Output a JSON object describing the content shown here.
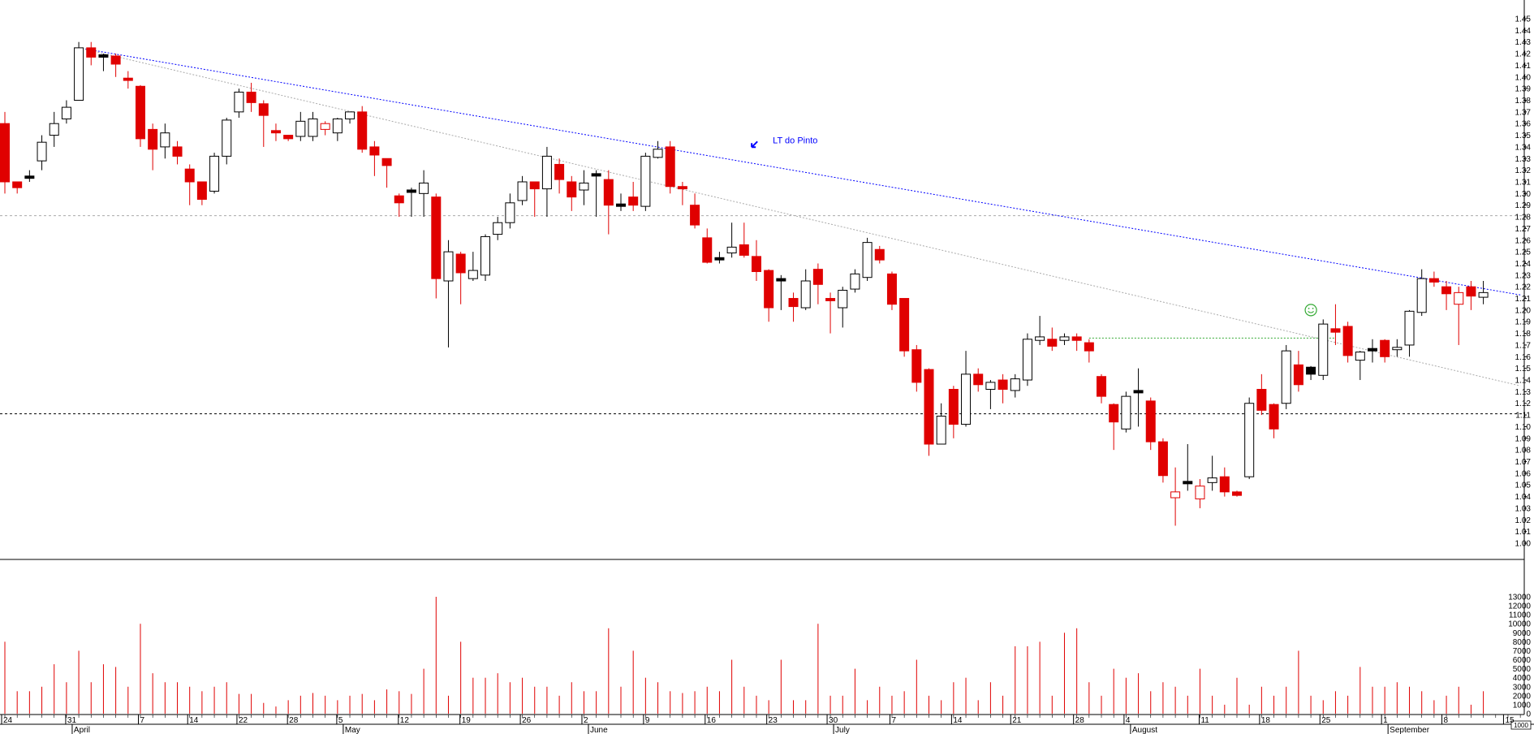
{
  "chart_data": {
    "type": "candlestick",
    "price_axis": {
      "min": 1.0,
      "max": 1.45,
      "step": 0.01,
      "position": "right"
    },
    "volume_axis": {
      "min": 0,
      "max": 13000,
      "step": 1000,
      "unit_label": "1000"
    },
    "date_ticks": [
      {
        "label": "24",
        "month": ""
      },
      {
        "label": "31",
        "month": "April"
      },
      {
        "label": "7",
        "month": ""
      },
      {
        "label": "14",
        "month": ""
      },
      {
        "label": "22",
        "month": ""
      },
      {
        "label": "28",
        "month": ""
      },
      {
        "label": "5",
        "month": "May"
      },
      {
        "label": "12",
        "month": ""
      },
      {
        "label": "19",
        "month": ""
      },
      {
        "label": "26",
        "month": ""
      },
      {
        "label": "2",
        "month": "June"
      },
      {
        "label": "9",
        "month": ""
      },
      {
        "label": "16",
        "month": ""
      },
      {
        "label": "23",
        "month": ""
      },
      {
        "label": "30",
        "month": "July"
      },
      {
        "label": "7",
        "month": ""
      },
      {
        "label": "14",
        "month": ""
      },
      {
        "label": "21",
        "month": ""
      },
      {
        "label": "28",
        "month": ""
      },
      {
        "label": "4",
        "month": "August"
      },
      {
        "label": "11",
        "month": ""
      },
      {
        "label": "18",
        "month": ""
      },
      {
        "label": "25",
        "month": ""
      },
      {
        "label": "1",
        "month": "September"
      },
      {
        "label": "8",
        "month": ""
      },
      {
        "label": "15",
        "month": ""
      }
    ],
    "colors": {
      "down": "#e00000",
      "up": "#ffffff",
      "outline": "#000000",
      "volume": "#e00000",
      "trendline": "#0000ff",
      "support": "#000000",
      "guide": "#aaaaaa",
      "green_line": "#33aa33"
    },
    "candle_styles_legend": {
      "u": "up (white)",
      "d": "down (red)",
      "k": "black",
      "r": "hollow red"
    },
    "candles": [
      [
        "d",
        1.36,
        1.37,
        1.3,
        1.31
      ],
      [
        "d",
        1.31,
        1.31,
        1.3,
        1.305
      ],
      [
        "k",
        1.315,
        1.32,
        1.31,
        1.313
      ],
      [
        "u",
        1.328,
        1.35,
        1.32,
        1.344
      ],
      [
        "u",
        1.35,
        1.37,
        1.34,
        1.36
      ],
      [
        "u",
        1.364,
        1.38,
        1.36,
        1.374
      ],
      [
        "u",
        1.38,
        1.43,
        1.38,
        1.425
      ],
      [
        "d",
        1.425,
        1.43,
        1.41,
        1.417
      ],
      [
        "k",
        1.418,
        1.42,
        1.405,
        1.418
      ],
      [
        "d",
        1.418,
        1.42,
        1.4,
        1.411
      ],
      [
        "d",
        1.399,
        1.405,
        1.39,
        1.397
      ],
      [
        "d",
        1.392,
        1.393,
        1.34,
        1.347
      ],
      [
        "d",
        1.355,
        1.36,
        1.32,
        1.338
      ],
      [
        "u",
        1.34,
        1.36,
        1.33,
        1.352
      ],
      [
        "d",
        1.34,
        1.345,
        1.325,
        1.332
      ],
      [
        "d",
        1.321,
        1.325,
        1.29,
        1.31
      ],
      [
        "d",
        1.31,
        1.31,
        1.29,
        1.295
      ],
      [
        "u",
        1.302,
        1.335,
        1.3,
        1.332
      ],
      [
        "u",
        1.332,
        1.365,
        1.325,
        1.363
      ],
      [
        "u",
        1.37,
        1.39,
        1.365,
        1.387
      ],
      [
        "d",
        1.387,
        1.395,
        1.37,
        1.378
      ],
      [
        "d",
        1.377,
        1.38,
        1.34,
        1.367
      ],
      [
        "d",
        1.354,
        1.36,
        1.345,
        1.352
      ],
      [
        "d",
        1.35,
        1.35,
        1.345,
        1.347
      ],
      [
        "u",
        1.349,
        1.37,
        1.345,
        1.362
      ],
      [
        "u",
        1.349,
        1.37,
        1.345,
        1.364
      ],
      [
        "r",
        1.36,
        1.362,
        1.35,
        1.355
      ],
      [
        "u",
        1.352,
        1.365,
        1.345,
        1.364
      ],
      [
        "u",
        1.364,
        1.37,
        1.36,
        1.37
      ],
      [
        "d",
        1.37,
        1.375,
        1.335,
        1.338
      ],
      [
        "d",
        1.34,
        1.345,
        1.315,
        1.333
      ],
      [
        "d",
        1.33,
        1.33,
        1.305,
        1.324
      ],
      [
        "d",
        1.298,
        1.3,
        1.28,
        1.292
      ],
      [
        "k",
        1.302,
        1.305,
        1.28,
        1.302
      ],
      [
        "u",
        1.3,
        1.32,
        1.28,
        1.309
      ],
      [
        "d",
        1.297,
        1.3,
        1.21,
        1.227
      ],
      [
        "u",
        1.225,
        1.26,
        1.168,
        1.25
      ],
      [
        "d",
        1.248,
        1.25,
        1.205,
        1.232
      ],
      [
        "u",
        1.227,
        1.25,
        1.225,
        1.234
      ],
      [
        "u",
        1.23,
        1.265,
        1.225,
        1.263
      ],
      [
        "u",
        1.265,
        1.28,
        1.26,
        1.275
      ],
      [
        "u",
        1.275,
        1.3,
        1.27,
        1.292
      ],
      [
        "u",
        1.294,
        1.315,
        1.29,
        1.31
      ],
      [
        "d",
        1.31,
        1.31,
        1.28,
        1.304
      ],
      [
        "u",
        1.304,
        1.34,
        1.28,
        1.332
      ],
      [
        "d",
        1.325,
        1.33,
        1.3,
        1.312
      ],
      [
        "d",
        1.31,
        1.315,
        1.285,
        1.297
      ],
      [
        "u",
        1.303,
        1.32,
        1.29,
        1.309
      ],
      [
        "k",
        1.316,
        1.32,
        1.28,
        1.316
      ],
      [
        "d",
        1.312,
        1.32,
        1.265,
        1.29
      ],
      [
        "k",
        1.29,
        1.3,
        1.285,
        1.29
      ],
      [
        "d",
        1.297,
        1.31,
        1.285,
        1.29
      ],
      [
        "u",
        1.289,
        1.335,
        1.285,
        1.332
      ],
      [
        "u",
        1.331,
        1.345,
        1.33,
        1.338
      ],
      [
        "d",
        1.34,
        1.345,
        1.3,
        1.306
      ],
      [
        "d",
        1.306,
        1.31,
        1.29,
        1.304
      ],
      [
        "d",
        1.29,
        1.3,
        1.27,
        1.273
      ],
      [
        "d",
        1.262,
        1.27,
        1.24,
        1.241
      ],
      [
        "k",
        1.243,
        1.25,
        1.24,
        1.245
      ],
      [
        "u",
        1.249,
        1.275,
        1.245,
        1.254
      ],
      [
        "d",
        1.256,
        1.275,
        1.245,
        1.247
      ],
      [
        "d",
        1.246,
        1.26,
        1.225,
        1.233
      ],
      [
        "d",
        1.234,
        1.235,
        1.19,
        1.202
      ],
      [
        "k",
        1.226,
        1.23,
        1.2,
        1.226
      ],
      [
        "d",
        1.21,
        1.215,
        1.19,
        1.203
      ],
      [
        "u",
        1.202,
        1.235,
        1.2,
        1.225
      ],
      [
        "d",
        1.235,
        1.24,
        1.205,
        1.222
      ],
      [
        "d",
        1.21,
        1.215,
        1.18,
        1.208
      ],
      [
        "u",
        1.202,
        1.22,
        1.185,
        1.217
      ],
      [
        "u",
        1.218,
        1.235,
        1.215,
        1.231
      ],
      [
        "u",
        1.228,
        1.262,
        1.225,
        1.258
      ],
      [
        "d",
        1.252,
        1.255,
        1.24,
        1.243
      ],
      [
        "d",
        1.231,
        1.233,
        1.2,
        1.205
      ],
      [
        "d",
        1.21,
        1.21,
        1.16,
        1.165
      ],
      [
        "d",
        1.166,
        1.17,
        1.13,
        1.138
      ],
      [
        "d",
        1.149,
        1.15,
        1.075,
        1.085
      ],
      [
        "u",
        1.085,
        1.12,
        1.085,
        1.109
      ],
      [
        "d",
        1.132,
        1.135,
        1.09,
        1.102
      ],
      [
        "u",
        1.102,
        1.165,
        1.1,
        1.145
      ],
      [
        "d",
        1.145,
        1.15,
        1.13,
        1.136
      ],
      [
        "u",
        1.132,
        1.14,
        1.115,
        1.138
      ],
      [
        "d",
        1.14,
        1.145,
        1.12,
        1.132
      ],
      [
        "u",
        1.131,
        1.145,
        1.125,
        1.141
      ],
      [
        "u",
        1.14,
        1.18,
        1.135,
        1.175
      ],
      [
        "u",
        1.174,
        1.195,
        1.17,
        1.177
      ],
      [
        "d",
        1.175,
        1.185,
        1.165,
        1.169
      ],
      [
        "u",
        1.174,
        1.18,
        1.17,
        1.177
      ],
      [
        "d",
        1.177,
        1.18,
        1.165,
        1.174
      ],
      [
        "d",
        1.172,
        1.175,
        1.155,
        1.165
      ],
      [
        "d",
        1.143,
        1.145,
        1.12,
        1.126
      ],
      [
        "d",
        1.119,
        1.12,
        1.08,
        1.104
      ],
      [
        "u",
        1.098,
        1.13,
        1.095,
        1.126
      ],
      [
        "k",
        1.13,
        1.15,
        1.1,
        1.13
      ],
      [
        "d",
        1.122,
        1.125,
        1.08,
        1.087
      ],
      [
        "d",
        1.087,
        1.09,
        1.052,
        1.058
      ],
      [
        "r",
        1.044,
        1.065,
        1.015,
        1.039
      ],
      [
        "k",
        1.052,
        1.085,
        1.045,
        1.052
      ],
      [
        "r",
        1.049,
        1.055,
        1.03,
        1.038
      ],
      [
        "u",
        1.052,
        1.075,
        1.045,
        1.056
      ],
      [
        "d",
        1.057,
        1.065,
        1.04,
        1.044
      ],
      [
        "d",
        1.044,
        1.045,
        1.04,
        1.041
      ],
      [
        "u",
        1.057,
        1.125,
        1.055,
        1.12
      ],
      [
        "d",
        1.132,
        1.145,
        1.11,
        1.114
      ],
      [
        "d",
        1.119,
        1.12,
        1.09,
        1.098
      ],
      [
        "u",
        1.12,
        1.17,
        1.115,
        1.165
      ],
      [
        "d",
        1.153,
        1.165,
        1.13,
        1.136
      ],
      [
        "k",
        1.151,
        1.152,
        1.14,
        1.145
      ],
      [
        "u",
        1.144,
        1.192,
        1.14,
        1.188
      ],
      [
        "d",
        1.184,
        1.205,
        1.17,
        1.181
      ],
      [
        "d",
        1.186,
        1.19,
        1.155,
        1.161
      ],
      [
        "u",
        1.157,
        1.165,
        1.14,
        1.164
      ],
      [
        "k",
        1.166,
        1.175,
        1.155,
        1.166
      ],
      [
        "d",
        1.174,
        1.175,
        1.155,
        1.16
      ],
      [
        "u",
        1.166,
        1.175,
        1.16,
        1.168
      ],
      [
        "u",
        1.17,
        1.2,
        1.16,
        1.199
      ],
      [
        "u",
        1.198,
        1.235,
        1.195,
        1.227
      ],
      [
        "d",
        1.227,
        1.233,
        1.22,
        1.224
      ],
      [
        "d",
        1.22,
        1.225,
        1.2,
        1.214
      ],
      [
        "r",
        1.215,
        1.22,
        1.17,
        1.205
      ],
      [
        "d",
        1.22,
        1.225,
        1.2,
        1.212
      ],
      [
        "u",
        1.211,
        1.225,
        1.205,
        1.215
      ]
    ],
    "volume": [
      8,
      2.5,
      2.5,
      3,
      5.5,
      3.5,
      7,
      3.5,
      5.5,
      5.2,
      3,
      10,
      4.5,
      3.5,
      3.5,
      3,
      2.5,
      3,
      3.5,
      2.2,
      2.2,
      1.2,
      0.8,
      1.5,
      2,
      2.3,
      2,
      1.5,
      2,
      2.2,
      1.5,
      2.7,
      2.5,
      2.2,
      5,
      13,
      2,
      8,
      4,
      4,
      4.5,
      3.5,
      4,
      3,
      3,
      2,
      3.5,
      2.5,
      2.5,
      9.5,
      3,
      7,
      4,
      3.5,
      2.5,
      2.3,
      2.5,
      3,
      2.5,
      6,
      3,
      2,
      1.5,
      6,
      1.5,
      1.5,
      10,
      2,
      2,
      5,
      1.5,
      3,
      2,
      2.5,
      6,
      2,
      1.5,
      3.5,
      4,
      1.5,
      3.5,
      2,
      7.5,
      7.5,
      8,
      2,
      9,
      9.5,
      3.5,
      2,
      5,
      4,
      4.5,
      2.5,
      3.5,
      3,
      2,
      5,
      2,
      1,
      4,
      1,
      3,
      2,
      3,
      7,
      2,
      1.5,
      2.5,
      2,
      5.2,
      3,
      3,
      3.5,
      3,
      2.5,
      1.5,
      2,
      3,
      1,
      2.5
    ],
    "volume_units": "thousands",
    "trendlines": [
      {
        "kind": "resistance",
        "style": "dotted",
        "color": "#0000ff",
        "from": [
          7,
          1.425
        ],
        "to": [
          124,
          1.213
        ]
      },
      {
        "kind": "guide",
        "style": "dotted",
        "color": "#aaaaaa",
        "from": [
          7,
          1.425
        ],
        "to": [
          124,
          1.135
        ]
      },
      {
        "kind": "level",
        "style": "dotted",
        "color": "#33aa33",
        "from": [
          89,
          1.176
        ],
        "to": [
          109,
          1.176
        ]
      }
    ],
    "horizontal_lines": [
      {
        "price": 1.281,
        "color": "#aaaaaa",
        "style": "dashed"
      },
      {
        "price": 1.111,
        "color": "#000000",
        "style": "dashed"
      }
    ],
    "annotations": [
      {
        "text": "LT do Pinto",
        "color": "#0000ff",
        "at": [
          63,
          1.346
        ],
        "icon": "arrow-down-left-icon"
      },
      {
        "text": "",
        "icon": "smiley-icon",
        "color": "#33aa33",
        "at": [
          107,
          1.2
        ]
      }
    ]
  }
}
